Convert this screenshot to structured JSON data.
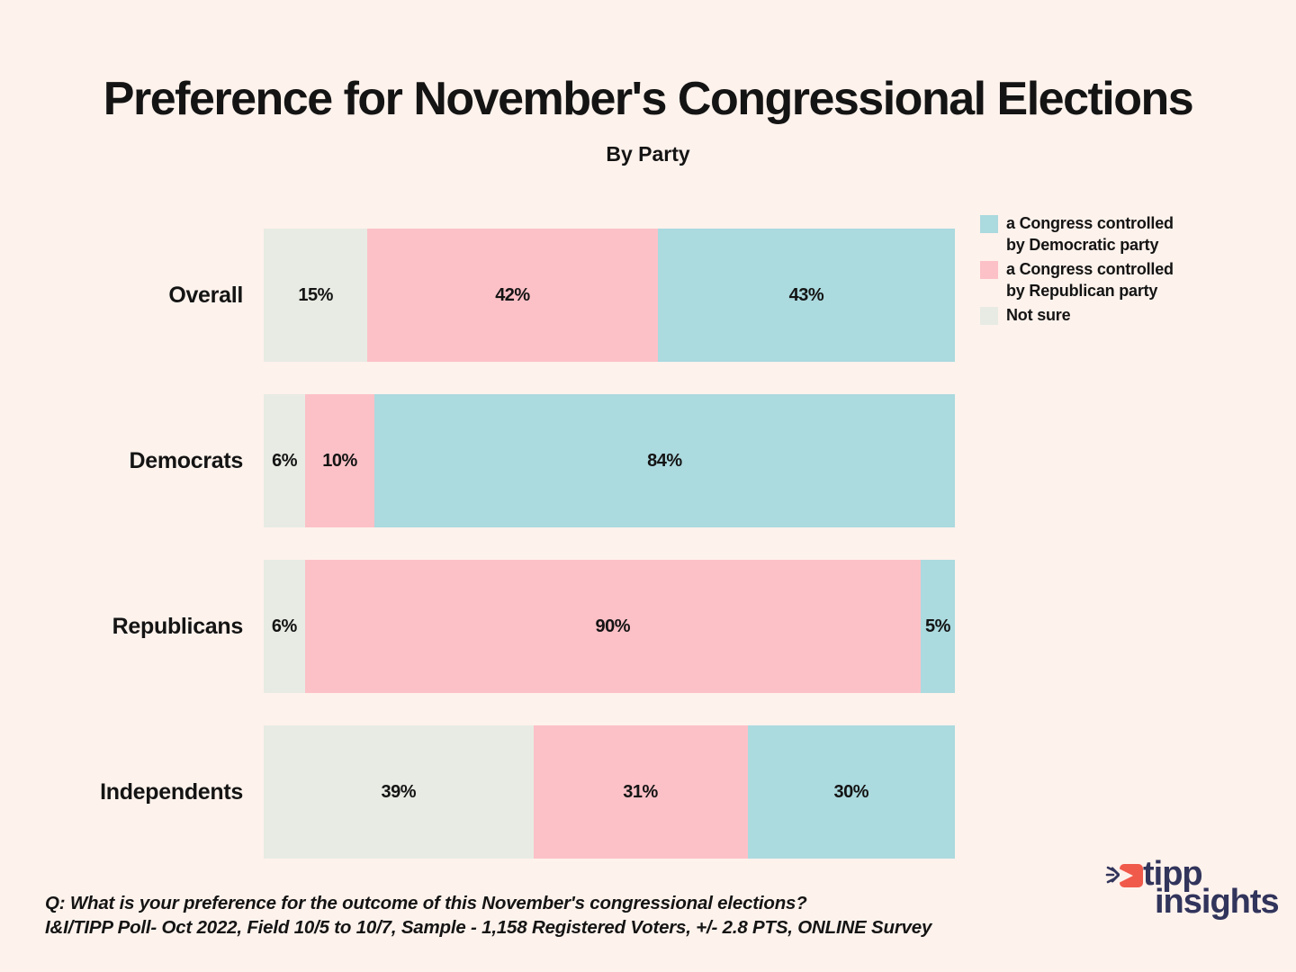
{
  "title": "Preference for November's Congressional Elections",
  "subtitle": "By Party",
  "colors": {
    "background": "#FEF2EC",
    "democratic": "#ABDADF",
    "republican": "#FCC1C7",
    "not_sure": "#E7EBE3",
    "text": "#141414",
    "logo_navy": "#31345B",
    "logo_red": "#F05A4B"
  },
  "legend": [
    {
      "label": "a Congress controlled by Democratic party",
      "color": "#ABDADF"
    },
    {
      "label": "a Congress controlled by Republican party",
      "color": "#FCC1C7"
    },
    {
      "label": "Not sure",
      "color": "#E7EBE3"
    }
  ],
  "chart_data": {
    "type": "bar",
    "orientation": "horizontal",
    "stacked": true,
    "grid": false,
    "legend_position": "top-right",
    "xlim": [
      0,
      100
    ],
    "value_suffix": "%",
    "categories": [
      "Overall",
      "Democrats",
      "Republicans",
      "Independents"
    ],
    "series": [
      {
        "name": "Not sure",
        "key": "not-sure",
        "color": "#E7EBE3",
        "values": [
          15,
          6,
          6,
          39
        ]
      },
      {
        "name": "a Congress controlled by Republican party",
        "key": "republican",
        "color": "#FCC1C7",
        "values": [
          42,
          10,
          90,
          31
        ]
      },
      {
        "name": "a Congress controlled by Democratic party",
        "key": "democratic",
        "color": "#ABDADF",
        "values": [
          43,
          84,
          5,
          30
        ]
      }
    ]
  },
  "footer": {
    "question": "Q: What is your preference for the outcome of this November's congressional elections?",
    "source": "I&I/TIPP Poll- Oct 2022, Field 10/5 to 10/7, Sample - 1,158 Registered Voters, +/- 2.8 PTS, ONLINE Survey"
  },
  "logo": {
    "word1": "tipp",
    "word2": "insights"
  }
}
